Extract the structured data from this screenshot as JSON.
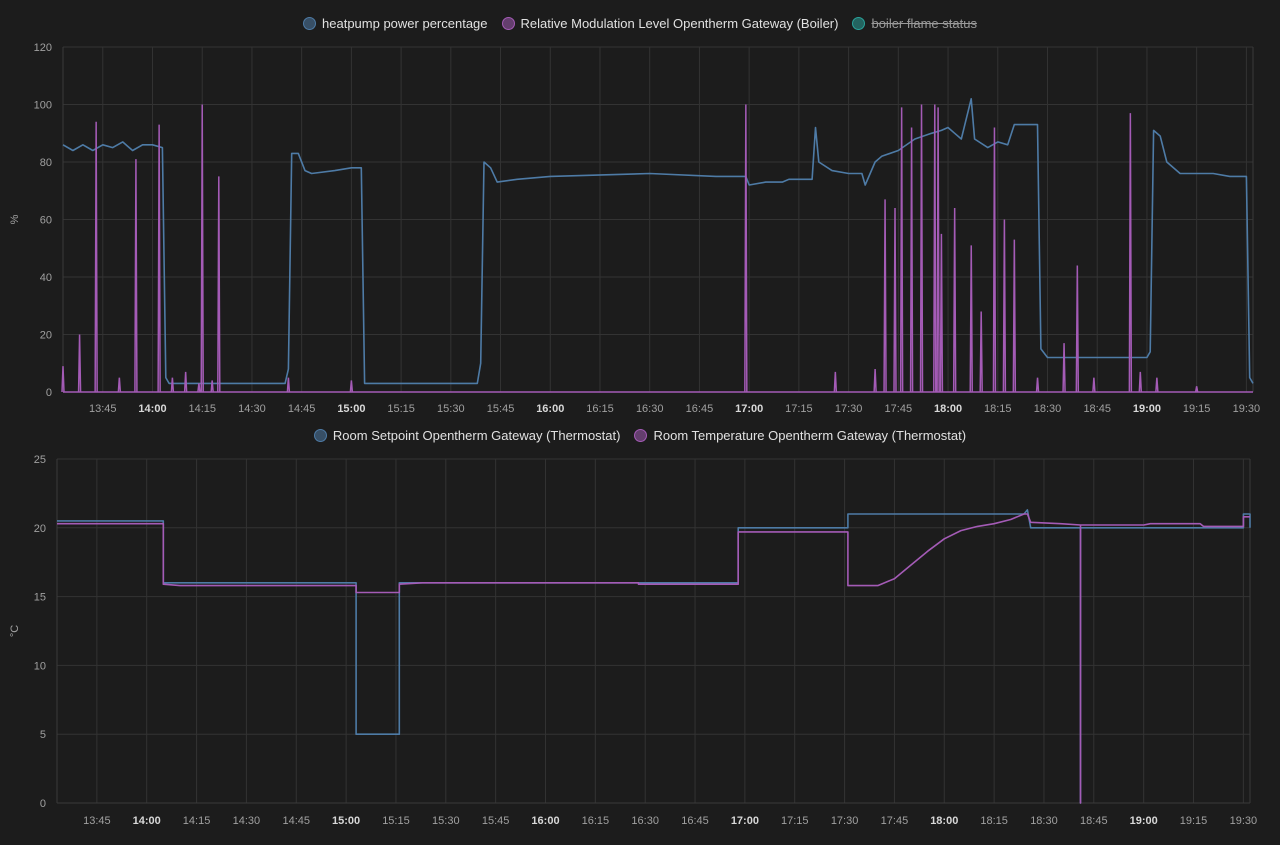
{
  "chart_data": [
    {
      "type": "line",
      "ylabel": "%",
      "ylim": [
        0,
        120
      ],
      "yticks": [
        0,
        20,
        40,
        60,
        80,
        100,
        120
      ],
      "xlim": [
        "13:33",
        "19:32"
      ],
      "xticks": [
        {
          "t": "13:45",
          "label": "13:45",
          "bold": false
        },
        {
          "t": "14:00",
          "label": "14:00",
          "bold": true
        },
        {
          "t": "14:15",
          "label": "14:15",
          "bold": false
        },
        {
          "t": "14:30",
          "label": "14:30",
          "bold": false
        },
        {
          "t": "14:45",
          "label": "14:45",
          "bold": false
        },
        {
          "t": "15:00",
          "label": "15:00",
          "bold": true
        },
        {
          "t": "15:15",
          "label": "15:15",
          "bold": false
        },
        {
          "t": "15:30",
          "label": "15:30",
          "bold": false
        },
        {
          "t": "15:45",
          "label": "15:45",
          "bold": false
        },
        {
          "t": "16:00",
          "label": "16:00",
          "bold": true
        },
        {
          "t": "16:15",
          "label": "16:15",
          "bold": false
        },
        {
          "t": "16:30",
          "label": "16:30",
          "bold": false
        },
        {
          "t": "16:45",
          "label": "16:45",
          "bold": false
        },
        {
          "t": "17:00",
          "label": "17:00",
          "bold": true
        },
        {
          "t": "17:15",
          "label": "17:15",
          "bold": false
        },
        {
          "t": "17:30",
          "label": "17:30",
          "bold": false
        },
        {
          "t": "17:45",
          "label": "17:45",
          "bold": false
        },
        {
          "t": "18:00",
          "label": "18:00",
          "bold": true
        },
        {
          "t": "18:15",
          "label": "18:15",
          "bold": false
        },
        {
          "t": "18:30",
          "label": "18:30",
          "bold": false
        },
        {
          "t": "18:45",
          "label": "18:45",
          "bold": false
        },
        {
          "t": "19:00",
          "label": "19:00",
          "bold": true
        },
        {
          "t": "19:15",
          "label": "19:15",
          "bold": false
        },
        {
          "t": "19:30",
          "label": "19:30",
          "bold": false
        }
      ],
      "grid": true,
      "legend_position": "top-center",
      "series": [
        {
          "name": "heatpump power percentage",
          "color": "#4e7ba6",
          "hidden": false,
          "points": [
            [
              "13:33",
              86
            ],
            [
              "13:36",
              84
            ],
            [
              "13:39",
              86
            ],
            [
              "13:42",
              84
            ],
            [
              "13:45",
              86
            ],
            [
              "13:48",
              85
            ],
            [
              "13:51",
              87
            ],
            [
              "13:54",
              84
            ],
            [
              "13:57",
              86
            ],
            [
              "14:00",
              86
            ],
            [
              "14:03",
              85
            ],
            [
              "14:04",
              5
            ],
            [
              "14:05",
              3
            ],
            [
              "14:30",
              3
            ],
            [
              "14:40",
              3
            ],
            [
              "14:41",
              8
            ],
            [
              "14:42",
              83
            ],
            [
              "14:44",
              83
            ],
            [
              "14:46",
              77
            ],
            [
              "14:48",
              76
            ],
            [
              "14:55",
              77
            ],
            [
              "15:00",
              78
            ],
            [
              "15:03",
              78
            ],
            [
              "15:04",
              3
            ],
            [
              "15:10",
              3
            ],
            [
              "15:30",
              3
            ],
            [
              "15:38",
              3
            ],
            [
              "15:39",
              10
            ],
            [
              "15:40",
              80
            ],
            [
              "15:42",
              78
            ],
            [
              "15:44",
              73
            ],
            [
              "15:50",
              74
            ],
            [
              "16:00",
              75
            ],
            [
              "16:30",
              76
            ],
            [
              "16:50",
              75
            ],
            [
              "16:59",
              75
            ],
            [
              "17:00",
              72
            ],
            [
              "17:05",
              73
            ],
            [
              "17:10",
              73
            ],
            [
              "17:12",
              74
            ],
            [
              "17:19",
              74
            ],
            [
              "17:20",
              92
            ],
            [
              "17:21",
              80
            ],
            [
              "17:25",
              77
            ],
            [
              "17:30",
              76
            ],
            [
              "17:34",
              76
            ],
            [
              "17:35",
              72
            ],
            [
              "17:38",
              80
            ],
            [
              "17:40",
              82
            ],
            [
              "17:45",
              84
            ],
            [
              "17:50",
              88
            ],
            [
              "17:55",
              90
            ],
            [
              "17:58",
              91
            ],
            [
              "18:00",
              92
            ],
            [
              "18:02",
              90
            ],
            [
              "18:04",
              88
            ],
            [
              "18:07",
              102
            ],
            [
              "18:08",
              88
            ],
            [
              "18:12",
              85
            ],
            [
              "18:15",
              87
            ],
            [
              "18:18",
              86
            ],
            [
              "18:20",
              93
            ],
            [
              "18:25",
              93
            ],
            [
              "18:27",
              93
            ],
            [
              "18:28",
              15
            ],
            [
              "18:30",
              12
            ],
            [
              "18:40",
              12
            ],
            [
              "18:55",
              12
            ],
            [
              "19:00",
              12
            ],
            [
              "19:01",
              14
            ],
            [
              "19:02",
              91
            ],
            [
              "19:04",
              89
            ],
            [
              "19:06",
              80
            ],
            [
              "19:10",
              76
            ],
            [
              "19:15",
              76
            ],
            [
              "19:20",
              76
            ],
            [
              "19:25",
              75
            ],
            [
              "19:30",
              75
            ],
            [
              "19:31",
              5
            ],
            [
              "19:32",
              3
            ]
          ]
        },
        {
          "name": "Relative Modulation Level Opentherm Gateway (Boiler)",
          "color": "#a45bb6",
          "hidden": false,
          "spikes": [
            [
              "13:33",
              9
            ],
            [
              "13:38",
              20
            ],
            [
              "13:43",
              94
            ],
            [
              "13:50",
              5
            ],
            [
              "13:55",
              81
            ],
            [
              "14:02",
              93
            ],
            [
              "14:06",
              5
            ],
            [
              "14:10",
              7
            ],
            [
              "14:14",
              3
            ],
            [
              "14:15",
              100
            ],
            [
              "14:18",
              4
            ],
            [
              "14:20",
              75
            ],
            [
              "14:41",
              5
            ],
            [
              "15:00",
              4
            ],
            [
              "16:59",
              100
            ],
            [
              "17:26",
              7
            ],
            [
              "17:38",
              8
            ],
            [
              "17:41",
              67
            ],
            [
              "17:44",
              64
            ],
            [
              "17:46",
              99
            ],
            [
              "17:49",
              92
            ],
            [
              "17:52",
              100
            ],
            [
              "17:56",
              100
            ],
            [
              "17:57",
              99
            ],
            [
              "17:58",
              55
            ],
            [
              "18:02",
              64
            ],
            [
              "18:07",
              51
            ],
            [
              "18:10",
              28
            ],
            [
              "18:14",
              92
            ],
            [
              "18:17",
              60
            ],
            [
              "18:20",
              53
            ],
            [
              "18:27",
              5
            ],
            [
              "18:35",
              17
            ],
            [
              "18:39",
              44
            ],
            [
              "18:44",
              5
            ],
            [
              "18:55",
              97
            ],
            [
              "18:58",
              7
            ],
            [
              "19:03",
              5
            ],
            [
              "19:15",
              2
            ]
          ]
        },
        {
          "name": "boiler flame status",
          "color": "#2aa39b",
          "hidden": true,
          "points": []
        }
      ]
    },
    {
      "type": "line",
      "ylabel": "°C",
      "ylim": [
        0,
        25
      ],
      "yticks": [
        0,
        5,
        10,
        15,
        20,
        25
      ],
      "xlim": [
        "13:33",
        "19:32"
      ],
      "xticks": [
        {
          "t": "13:45",
          "label": "13:45",
          "bold": false
        },
        {
          "t": "14:00",
          "label": "14:00",
          "bold": true
        },
        {
          "t": "14:15",
          "label": "14:15",
          "bold": false
        },
        {
          "t": "14:30",
          "label": "14:30",
          "bold": false
        },
        {
          "t": "14:45",
          "label": "14:45",
          "bold": false
        },
        {
          "t": "15:00",
          "label": "15:00",
          "bold": true
        },
        {
          "t": "15:15",
          "label": "15:15",
          "bold": false
        },
        {
          "t": "15:30",
          "label": "15:30",
          "bold": false
        },
        {
          "t": "15:45",
          "label": "15:45",
          "bold": false
        },
        {
          "t": "16:00",
          "label": "16:00",
          "bold": true
        },
        {
          "t": "16:15",
          "label": "16:15",
          "bold": false
        },
        {
          "t": "16:30",
          "label": "16:30",
          "bold": false
        },
        {
          "t": "16:45",
          "label": "16:45",
          "bold": false
        },
        {
          "t": "17:00",
          "label": "17:00",
          "bold": true
        },
        {
          "t": "17:15",
          "label": "17:15",
          "bold": false
        },
        {
          "t": "17:30",
          "label": "17:30",
          "bold": false
        },
        {
          "t": "17:45",
          "label": "17:45",
          "bold": false
        },
        {
          "t": "18:00",
          "label": "18:00",
          "bold": true
        },
        {
          "t": "18:15",
          "label": "18:15",
          "bold": false
        },
        {
          "t": "18:30",
          "label": "18:30",
          "bold": false
        },
        {
          "t": "18:45",
          "label": "18:45",
          "bold": false
        },
        {
          "t": "19:00",
          "label": "19:00",
          "bold": true
        },
        {
          "t": "19:15",
          "label": "19:15",
          "bold": false
        },
        {
          "t": "19:30",
          "label": "19:30",
          "bold": false
        }
      ],
      "grid": true,
      "legend_position": "top-center",
      "series": [
        {
          "name": "Room Setpoint Opentherm Gateway (Thermostat)",
          "color": "#4e7ba6",
          "hidden": false,
          "step": true,
          "points": [
            [
              "13:33",
              20.5
            ],
            [
              "14:05",
              20.5
            ],
            [
              "14:05",
              16
            ],
            [
              "15:03",
              16
            ],
            [
              "15:03",
              5
            ],
            [
              "15:16",
              5
            ],
            [
              "15:16",
              16
            ],
            [
              "16:58",
              16
            ],
            [
              "16:58",
              20
            ],
            [
              "17:31",
              20
            ],
            [
              "17:31",
              21
            ],
            [
              "18:24",
              21
            ],
            [
              "18:25",
              21.3
            ],
            [
              "18:26",
              20
            ],
            [
              "18:41",
              20
            ],
            [
              "18:41",
              0
            ],
            [
              "18:41",
              20
            ],
            [
              "19:30",
              20
            ],
            [
              "19:30",
              21
            ],
            [
              "19:32",
              21
            ],
            [
              "19:32",
              20
            ]
          ]
        },
        {
          "name": "Room Temperature Opentherm Gateway (Thermostat)",
          "color": "#a45bb6",
          "hidden": false,
          "step": true,
          "points": [
            [
              "13:33",
              20.3
            ],
            [
              "14:05",
              20.3
            ],
            [
              "14:05",
              15.9
            ],
            [
              "14:10",
              15.8
            ],
            [
              "15:03",
              15.8
            ],
            [
              "15:03",
              15.3
            ],
            [
              "15:16",
              15.3
            ],
            [
              "15:16",
              15.9
            ],
            [
              "15:23",
              16
            ],
            [
              "16:28",
              16
            ],
            [
              "16:28",
              15.9
            ],
            [
              "16:58",
              15.9
            ],
            [
              "16:58",
              19.7
            ],
            [
              "17:31",
              19.7
            ],
            [
              "17:31",
              15.8
            ],
            [
              "17:40",
              15.8
            ],
            [
              "17:45",
              16.3
            ],
            [
              "17:50",
              17.3
            ],
            [
              "17:55",
              18.3
            ],
            [
              "18:00",
              19.2
            ],
            [
              "18:05",
              19.8
            ],
            [
              "18:10",
              20.1
            ],
            [
              "18:15",
              20.3
            ],
            [
              "18:20",
              20.6
            ],
            [
              "18:24",
              21
            ],
            [
              "18:25",
              21
            ],
            [
              "18:26",
              20.4
            ],
            [
              "18:35",
              20.3
            ],
            [
              "18:41",
              20.2
            ],
            [
              "18:41",
              0
            ],
            [
              "18:41",
              20.2
            ],
            [
              "19:00",
              20.2
            ],
            [
              "19:02",
              20.3
            ],
            [
              "19:17",
              20.3
            ],
            [
              "19:18",
              20.1
            ],
            [
              "19:30",
              20.1
            ],
            [
              "19:30",
              20.8
            ],
            [
              "19:32",
              20.8
            ]
          ]
        }
      ]
    }
  ]
}
